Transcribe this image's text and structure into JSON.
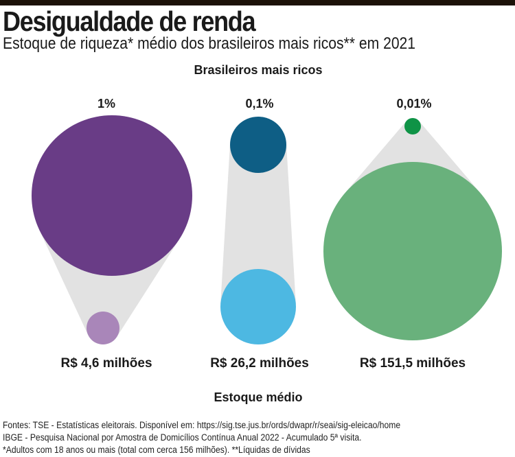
{
  "title": "Desigualdade de renda",
  "subtitle": "Estoque de riqueza* médio dos brasileiros mais ricos** em 2021",
  "chart_data": {
    "type": "proportional-circles",
    "top_label": "Brasileiros mais ricos",
    "bottom_label": "Estoque médio",
    "groups": [
      {
        "percent_label": "1%",
        "value_label": "R$ 4,6 milhões",
        "value_millions_brl": 4.6,
        "top_color": "#693c86",
        "bottom_color": "#a986b9"
      },
      {
        "percent_label": "0,1%",
        "value_label": "R$ 26,2 milhões",
        "value_millions_brl": 26.2,
        "top_color": "#0e5e85",
        "bottom_color": "#4db8e2"
      },
      {
        "percent_label": "0,01%",
        "value_label": "R$ 151,5 milhões",
        "value_millions_brl": 151.5,
        "top_color": "#0f9346",
        "bottom_color": "#69b17c"
      }
    ],
    "connector_color": "#e2e2e2"
  },
  "footer": [
    "Fontes: TSE - Estatísticas eleitorais. Disponível em: https://sig.tse.jus.br/ords/dwapr/r/seai/sig-eleicao/home",
    "IBGE - Pesquisa Nacional por Amostra de Domicílios Contínua Anual 2022 - Acumulado 5ª visita.",
    "*Adultos com 18 anos ou mais (total com cerca 156 milhões).  **Líquidas de dívidas"
  ]
}
